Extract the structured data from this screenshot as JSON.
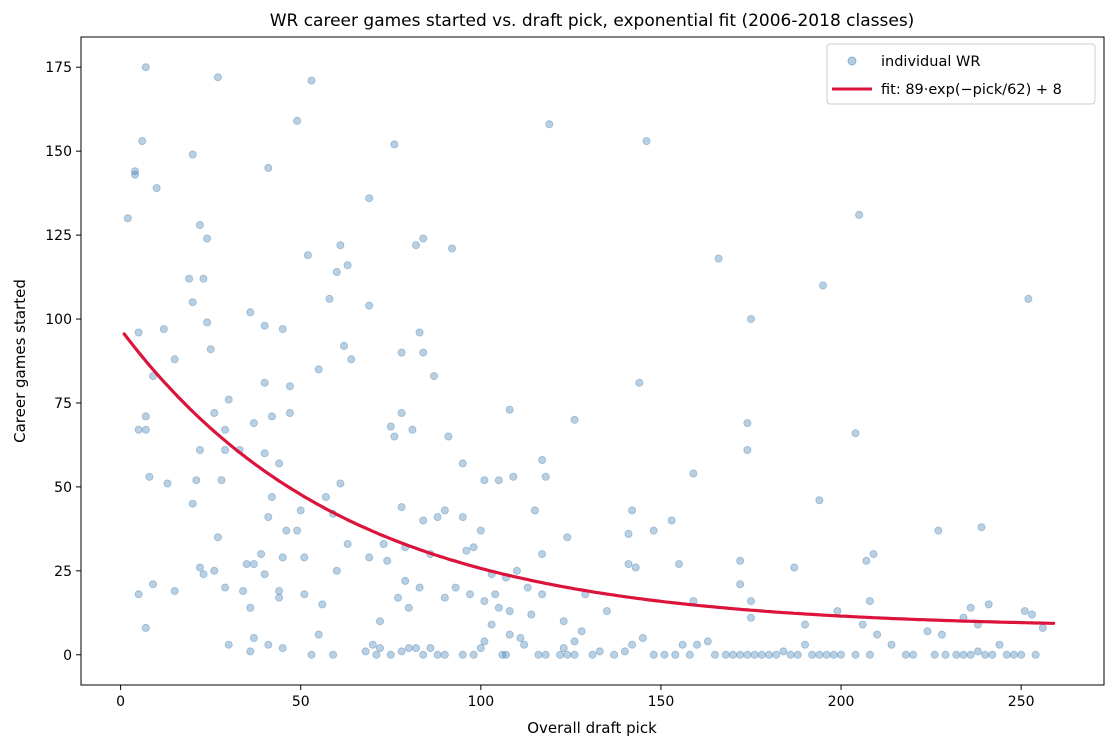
{
  "chart_data": {
    "type": "scatter",
    "title": "WR career games started vs. draft pick, exponential fit (2006-2018 classes)",
    "xlabel": "Overall draft pick",
    "ylabel": "Career games started",
    "xlim": [
      -11,
      273
    ],
    "ylim": [
      -9,
      184
    ],
    "xticks": [
      0,
      50,
      100,
      150,
      200,
      250
    ],
    "yticks": [
      0,
      25,
      50,
      75,
      100,
      125,
      150,
      175
    ],
    "grid": false,
    "legend_position": "top-right",
    "colors": {
      "points": "#4682b4",
      "fit": "#dc143c"
    },
    "series": [
      {
        "name": "individual WR",
        "kind": "scatter",
        "points": [
          [
            7,
            175
          ],
          [
            27,
            172
          ],
          [
            53,
            171
          ],
          [
            49,
            159
          ],
          [
            6,
            153
          ],
          [
            20,
            149
          ],
          [
            4,
            144
          ],
          [
            4,
            143
          ],
          [
            10,
            139
          ],
          [
            2,
            130
          ],
          [
            22,
            128
          ],
          [
            24,
            124
          ],
          [
            41,
            145
          ],
          [
            76,
            152
          ],
          [
            119,
            158
          ],
          [
            146,
            153
          ],
          [
            19,
            112
          ],
          [
            23,
            112
          ],
          [
            20,
            105
          ],
          [
            12,
            97
          ],
          [
            5,
            96
          ],
          [
            24,
            99
          ],
          [
            15,
            88
          ],
          [
            9,
            83
          ],
          [
            25,
            91
          ],
          [
            36,
            102
          ],
          [
            40,
            98
          ],
          [
            45,
            97
          ],
          [
            52,
            119
          ],
          [
            60,
            114
          ],
          [
            61,
            122
          ],
          [
            63,
            116
          ],
          [
            58,
            106
          ],
          [
            69,
            136
          ],
          [
            69,
            104
          ],
          [
            62,
            92
          ],
          [
            64,
            88
          ],
          [
            78,
            90
          ],
          [
            82,
            122
          ],
          [
            84,
            124
          ],
          [
            83,
            96
          ],
          [
            84,
            90
          ],
          [
            87,
            83
          ],
          [
            92,
            121
          ],
          [
            166,
            118
          ],
          [
            175,
            100
          ],
          [
            195,
            110
          ],
          [
            205,
            131
          ],
          [
            252,
            106
          ],
          [
            7,
            71
          ],
          [
            5,
            67
          ],
          [
            7,
            67
          ],
          [
            8,
            53
          ],
          [
            13,
            51
          ],
          [
            20,
            45
          ],
          [
            21,
            52
          ],
          [
            22,
            61
          ],
          [
            26,
            72
          ],
          [
            29,
            67
          ],
          [
            30,
            76
          ],
          [
            28,
            52
          ],
          [
            29,
            61
          ],
          [
            33,
            61
          ],
          [
            37,
            69
          ],
          [
            40,
            81
          ],
          [
            42,
            71
          ],
          [
            40,
            60
          ],
          [
            44,
            57
          ],
          [
            42,
            47
          ],
          [
            41,
            41
          ],
          [
            46,
            37
          ],
          [
            47,
            80
          ],
          [
            47,
            72
          ],
          [
            50,
            43
          ],
          [
            55,
            85
          ],
          [
            57,
            47
          ],
          [
            59,
            42
          ],
          [
            61,
            51
          ],
          [
            63,
            33
          ],
          [
            73,
            33
          ],
          [
            75,
            68
          ],
          [
            76,
            65
          ],
          [
            78,
            72
          ],
          [
            78,
            44
          ],
          [
            81,
            67
          ],
          [
            84,
            40
          ],
          [
            88,
            41
          ],
          [
            90,
            43
          ],
          [
            91,
            65
          ],
          [
            95,
            57
          ],
          [
            95,
            41
          ],
          [
            96,
            31
          ],
          [
            100,
            37
          ],
          [
            101,
            52
          ],
          [
            105,
            52
          ],
          [
            108,
            73
          ],
          [
            109,
            53
          ],
          [
            115,
            43
          ],
          [
            117,
            58
          ],
          [
            118,
            53
          ],
          [
            124,
            35
          ],
          [
            126,
            70
          ],
          [
            141,
            36
          ],
          [
            142,
            43
          ],
          [
            144,
            81
          ],
          [
            148,
            37
          ],
          [
            153,
            40
          ],
          [
            159,
            54
          ],
          [
            174,
            69
          ],
          [
            174,
            61
          ],
          [
            194,
            46
          ],
          [
            204,
            66
          ],
          [
            209,
            30
          ],
          [
            227,
            37
          ],
          [
            239,
            38
          ],
          [
            22,
            26
          ],
          [
            23,
            24
          ],
          [
            27,
            35
          ],
          [
            26,
            25
          ],
          [
            29,
            20
          ],
          [
            35,
            27
          ],
          [
            34,
            19
          ],
          [
            37,
            27
          ],
          [
            39,
            30
          ],
          [
            40,
            24
          ],
          [
            44,
            19
          ],
          [
            44,
            17
          ],
          [
            45,
            29
          ],
          [
            49,
            37
          ],
          [
            51,
            29
          ],
          [
            51,
            18
          ],
          [
            56,
            15
          ],
          [
            60,
            25
          ],
          [
            69,
            29
          ],
          [
            72,
            10
          ],
          [
            74,
            28
          ],
          [
            77,
            17
          ],
          [
            79,
            32
          ],
          [
            79,
            22
          ],
          [
            80,
            14
          ],
          [
            83,
            20
          ],
          [
            86,
            30
          ],
          [
            90,
            17
          ],
          [
            93,
            20
          ],
          [
            97,
            18
          ],
          [
            98,
            32
          ],
          [
            101,
            16
          ],
          [
            103,
            24
          ],
          [
            104,
            18
          ],
          [
            105,
            14
          ],
          [
            107,
            23
          ],
          [
            108,
            13
          ],
          [
            110,
            25
          ],
          [
            113,
            20
          ],
          [
            114,
            12
          ],
          [
            117,
            30
          ],
          [
            117,
            18
          ],
          [
            123,
            10
          ],
          [
            126,
            4
          ],
          [
            129,
            18
          ],
          [
            135,
            13
          ],
          [
            141,
            27
          ],
          [
            143,
            26
          ],
          [
            155,
            27
          ],
          [
            159,
            16
          ],
          [
            172,
            21
          ],
          [
            172,
            28
          ],
          [
            175,
            16
          ],
          [
            175,
            11
          ],
          [
            187,
            26
          ],
          [
            190,
            9
          ],
          [
            199,
            13
          ],
          [
            207,
            28
          ],
          [
            208,
            16
          ],
          [
            234,
            11
          ],
          [
            236,
            14
          ],
          [
            238,
            9
          ],
          [
            241,
            15
          ],
          [
            251,
            13
          ],
          [
            253,
            12
          ],
          [
            9,
            21
          ],
          [
            5,
            18
          ],
          [
            15,
            19
          ],
          [
            7,
            8
          ],
          [
            36,
            14
          ],
          [
            37,
            5
          ],
          [
            30,
            3
          ],
          [
            41,
            3
          ],
          [
            36,
            1
          ],
          [
            45,
            2
          ],
          [
            53,
            0
          ],
          [
            55,
            6
          ],
          [
            59,
            0
          ],
          [
            68,
            1
          ],
          [
            70,
            3
          ],
          [
            71,
            0
          ],
          [
            72,
            2
          ],
          [
            75,
            0
          ],
          [
            78,
            1
          ],
          [
            80,
            2
          ],
          [
            82,
            2
          ],
          [
            84,
            0
          ],
          [
            86,
            2
          ],
          [
            88,
            0
          ],
          [
            90,
            0
          ],
          [
            95,
            0
          ],
          [
            98,
            0
          ],
          [
            100,
            2
          ],
          [
            101,
            4
          ],
          [
            103,
            9
          ],
          [
            106,
            0
          ],
          [
            107,
            0
          ],
          [
            108,
            6
          ],
          [
            111,
            5
          ],
          [
            112,
            3
          ],
          [
            116,
            0
          ],
          [
            118,
            0
          ],
          [
            122,
            0
          ],
          [
            123,
            2
          ],
          [
            124,
            0
          ],
          [
            126,
            0
          ],
          [
            128,
            7
          ],
          [
            131,
            0
          ],
          [
            133,
            1
          ],
          [
            137,
            0
          ],
          [
            140,
            1
          ],
          [
            142,
            3
          ],
          [
            145,
            5
          ],
          [
            148,
            0
          ],
          [
            151,
            0
          ],
          [
            154,
            0
          ],
          [
            156,
            3
          ],
          [
            158,
            0
          ],
          [
            160,
            3
          ],
          [
            163,
            4
          ],
          [
            165,
            0
          ],
          [
            168,
            0
          ],
          [
            170,
            0
          ],
          [
            172,
            0
          ],
          [
            174,
            0
          ],
          [
            176,
            0
          ],
          [
            178,
            0
          ],
          [
            180,
            0
          ],
          [
            182,
            0
          ],
          [
            184,
            1
          ],
          [
            186,
            0
          ],
          [
            188,
            0
          ],
          [
            190,
            3
          ],
          [
            192,
            0
          ],
          [
            194,
            0
          ],
          [
            196,
            0
          ],
          [
            198,
            0
          ],
          [
            200,
            0
          ],
          [
            204,
            0
          ],
          [
            206,
            9
          ],
          [
            208,
            0
          ],
          [
            210,
            6
          ],
          [
            214,
            3
          ],
          [
            218,
            0
          ],
          [
            220,
            0
          ],
          [
            224,
            7
          ],
          [
            226,
            0
          ],
          [
            228,
            6
          ],
          [
            229,
            0
          ],
          [
            232,
            0
          ],
          [
            234,
            0
          ],
          [
            236,
            0
          ],
          [
            238,
            1
          ],
          [
            240,
            0
          ],
          [
            242,
            0
          ],
          [
            244,
            3
          ],
          [
            246,
            0
          ],
          [
            248,
            0
          ],
          [
            250,
            0
          ],
          [
            254,
            0
          ],
          [
            256,
            8
          ]
        ]
      },
      {
        "name": "fit: 89·exp(−pick/62) + 8",
        "kind": "line",
        "function": {
          "a": 89,
          "b": 62,
          "c": 8
        },
        "x_range": [
          1,
          259
        ]
      }
    ]
  }
}
